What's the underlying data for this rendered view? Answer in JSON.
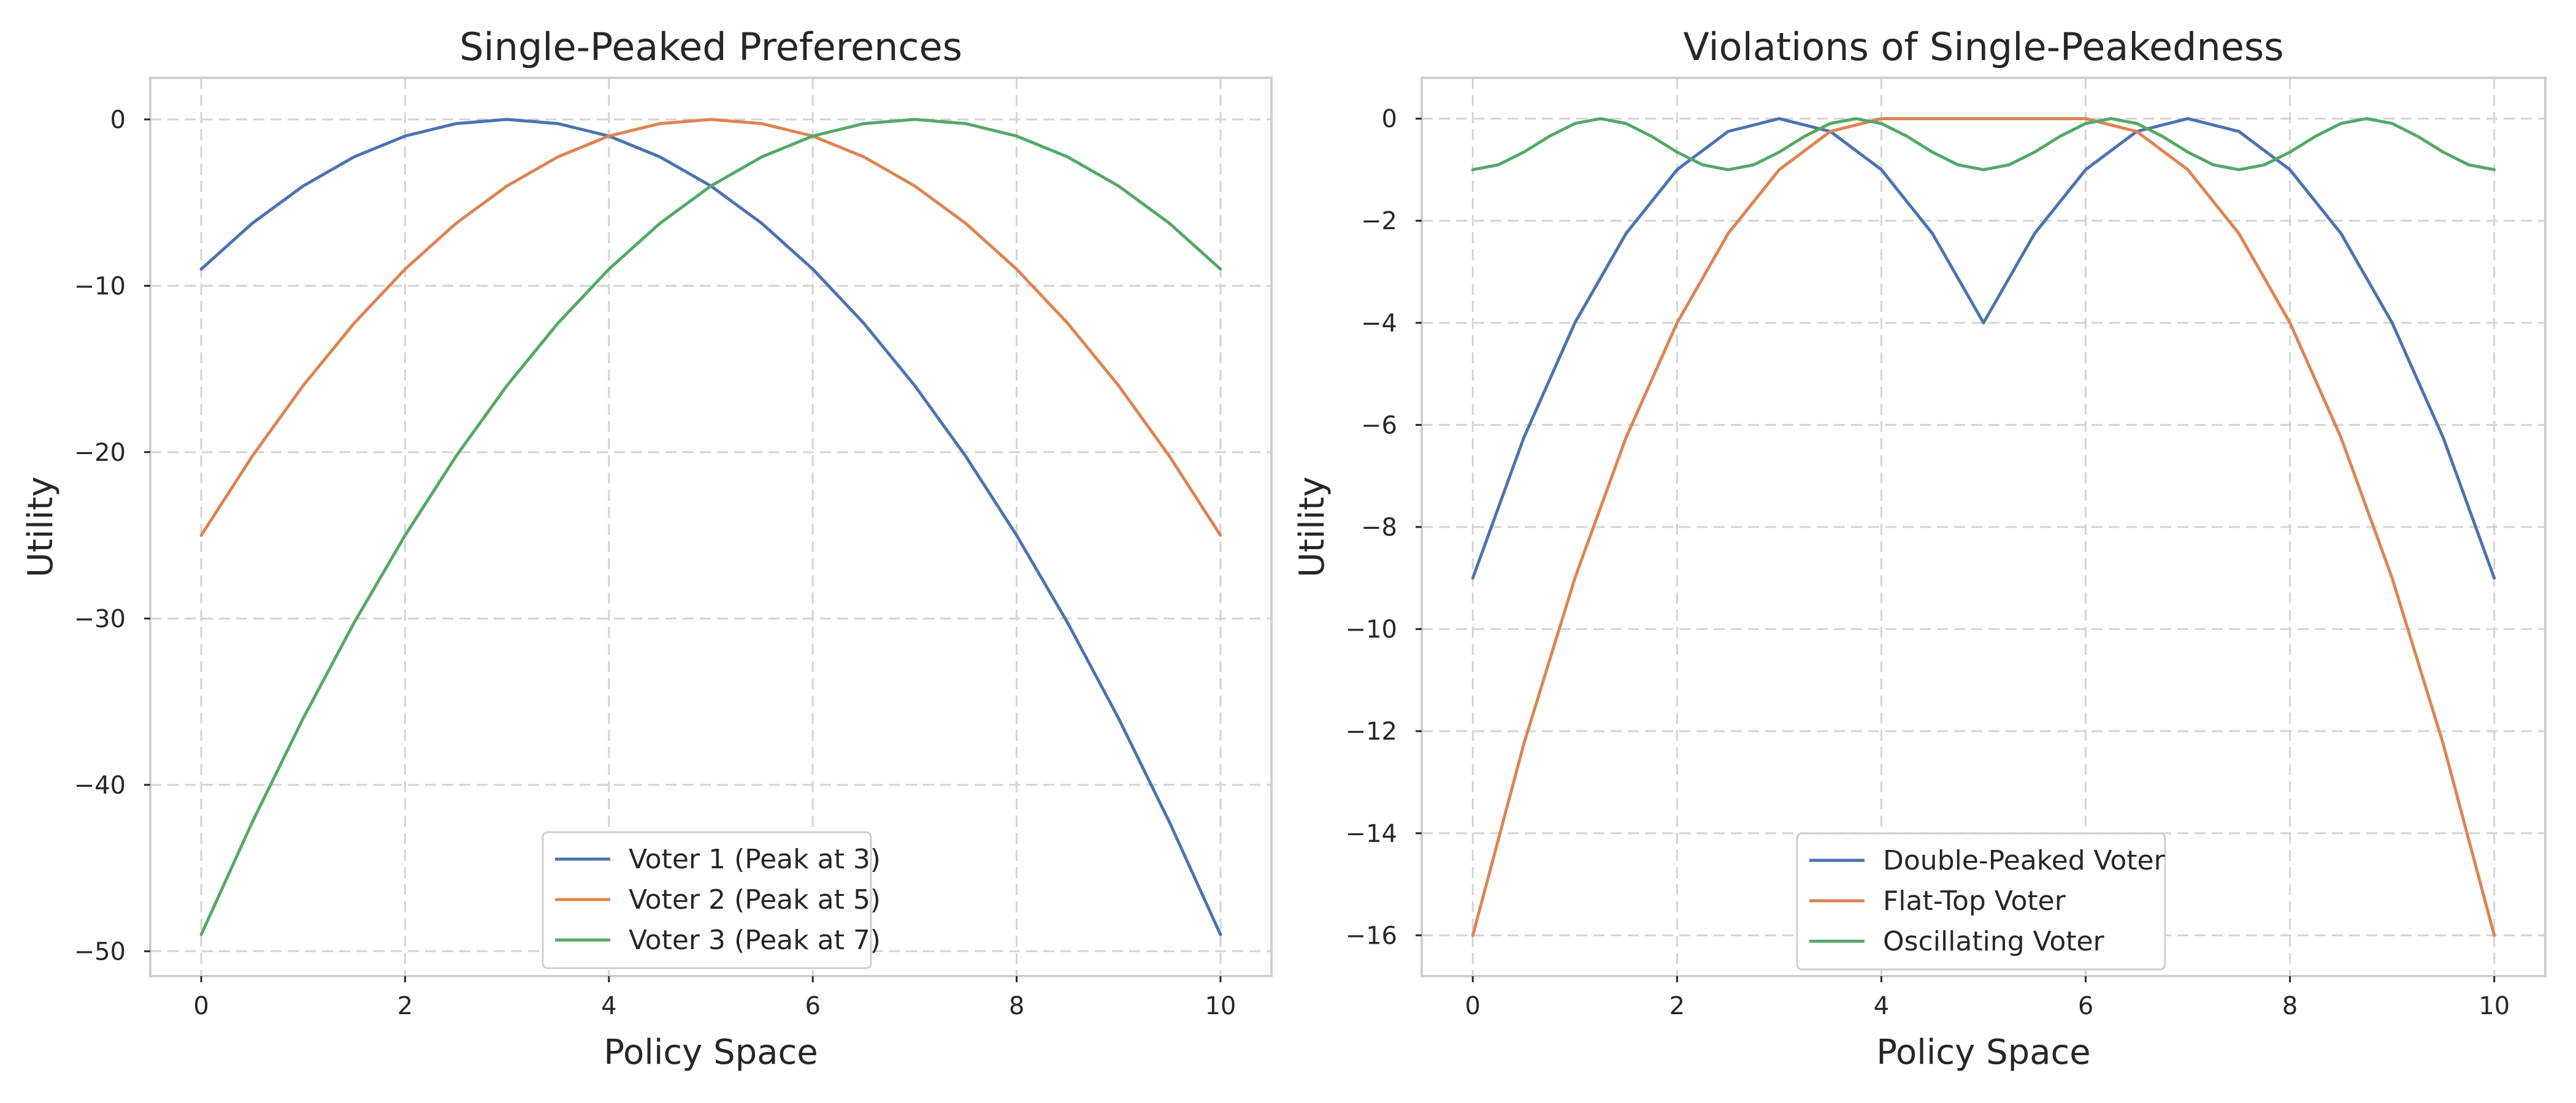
{
  "chart_data": [
    {
      "type": "line",
      "title": "Single-Peaked Preferences",
      "xlabel": "Policy Space",
      "ylabel": "Utility",
      "xlim": [
        -0.5,
        10.5
      ],
      "ylim": [
        -51.5,
        2.5
      ],
      "xticks": [
        0,
        2,
        4,
        6,
        8,
        10
      ],
      "yticks": [
        0,
        -10,
        -20,
        -30,
        -40,
        -50
      ],
      "grid": true,
      "legend_position": "bottom-center",
      "series": [
        {
          "name": "Voter 1 (Peak at 3)",
          "color": "#4c72b0",
          "x": [
            0,
            0.5,
            1,
            1.5,
            2,
            2.5,
            3,
            3.5,
            4,
            4.5,
            5,
            5.5,
            6,
            6.5,
            7,
            7.5,
            8,
            8.5,
            9,
            9.5,
            10
          ],
          "y": [
            -9,
            -6.25,
            -4,
            -2.25,
            -1,
            -0.25,
            0,
            -0.25,
            -1,
            -2.25,
            -4,
            -6.25,
            -9,
            -12.25,
            -16,
            -20.25,
            -25,
            -30.25,
            -36,
            -42.25,
            -49
          ]
        },
        {
          "name": "Voter 2 (Peak at 5)",
          "color": "#dd8452",
          "x": [
            0,
            0.5,
            1,
            1.5,
            2,
            2.5,
            3,
            3.5,
            4,
            4.5,
            5,
            5.5,
            6,
            6.5,
            7,
            7.5,
            8,
            8.5,
            9,
            9.5,
            10
          ],
          "y": [
            -25,
            -20.25,
            -16,
            -12.25,
            -9,
            -6.25,
            -4,
            -2.25,
            -1,
            -0.25,
            0,
            -0.25,
            -1,
            -2.25,
            -4,
            -6.25,
            -9,
            -12.25,
            -16,
            -20.25,
            -25
          ]
        },
        {
          "name": "Voter 3 (Peak at 7)",
          "color": "#55a868",
          "x": [
            0,
            0.5,
            1,
            1.5,
            2,
            2.5,
            3,
            3.5,
            4,
            4.5,
            5,
            5.5,
            6,
            6.5,
            7,
            7.5,
            8,
            8.5,
            9,
            9.5,
            10
          ],
          "y": [
            -49,
            -42.25,
            -36,
            -30.25,
            -25,
            -20.25,
            -16,
            -12.25,
            -9,
            -6.25,
            -4,
            -2.25,
            -1,
            -0.25,
            0,
            -0.25,
            -1,
            -2.25,
            -4,
            -6.25,
            -9
          ]
        }
      ]
    },
    {
      "type": "line",
      "title": "Violations of Single-Peakedness",
      "xlabel": "Policy Space",
      "ylabel": "Utility",
      "xlim": [
        -0.5,
        10.5
      ],
      "ylim": [
        -16.8,
        0.8
      ],
      "xticks": [
        0,
        2,
        4,
        6,
        8,
        10
      ],
      "yticks": [
        0,
        -2,
        -4,
        -6,
        -8,
        -10,
        -12,
        -14,
        -16
      ],
      "grid": true,
      "legend_position": "bottom-center",
      "series": [
        {
          "name": "Double-Peaked Voter",
          "color": "#4c72b0",
          "x": [
            0,
            0.5,
            1,
            1.5,
            2,
            2.5,
            3,
            3.5,
            4,
            4.5,
            5,
            5.5,
            6,
            6.5,
            7,
            7.5,
            8,
            8.5,
            9,
            9.5,
            10
          ],
          "y": [
            -9,
            -6.25,
            -4,
            -2.25,
            -1,
            -0.25,
            0,
            -0.25,
            -1,
            -2.25,
            -4,
            -2.25,
            -1,
            -0.25,
            0,
            -0.25,
            -1,
            -2.25,
            -4,
            -6.25,
            -9
          ]
        },
        {
          "name": "Flat-Top Voter",
          "color": "#dd8452",
          "x": [
            0,
            0.5,
            1,
            1.5,
            2,
            2.5,
            3,
            3.5,
            4,
            4.5,
            5,
            5.5,
            6,
            6.5,
            7,
            7.5,
            8,
            8.5,
            9,
            9.5,
            10
          ],
          "y": [
            -16,
            -12.25,
            -9,
            -6.25,
            -4,
            -2.25,
            -1,
            -0.25,
            0,
            0,
            0,
            0,
            0,
            -0.25,
            -1,
            -2.25,
            -4,
            -6.25,
            -9,
            -12.25,
            -16
          ]
        },
        {
          "name": "Oscillating Voter",
          "color": "#55a868",
          "x": [
            0,
            0.25,
            0.5,
            0.75,
            1,
            1.25,
            1.5,
            1.75,
            2,
            2.25,
            2.5,
            2.75,
            3,
            3.25,
            3.5,
            3.75,
            4,
            4.25,
            4.5,
            4.75,
            5,
            5.25,
            5.5,
            5.75,
            6,
            6.25,
            6.5,
            6.75,
            7,
            7.25,
            7.5,
            7.75,
            8,
            8.25,
            8.5,
            8.75,
            9,
            9.25,
            9.5,
            9.75,
            10
          ],
          "y": [
            -1,
            -0.905,
            -0.655,
            -0.345,
            -0.095,
            0,
            -0.095,
            -0.345,
            -0.655,
            -0.905,
            -1,
            -0.905,
            -0.655,
            -0.345,
            -0.095,
            0,
            -0.095,
            -0.345,
            -0.655,
            -0.905,
            -1,
            -0.905,
            -0.655,
            -0.345,
            -0.095,
            0,
            -0.095,
            -0.345,
            -0.655,
            -0.905,
            -1,
            -0.905,
            -0.655,
            -0.345,
            -0.095,
            0,
            -0.095,
            -0.345,
            -0.655,
            -0.905,
            -1
          ]
        }
      ]
    }
  ]
}
